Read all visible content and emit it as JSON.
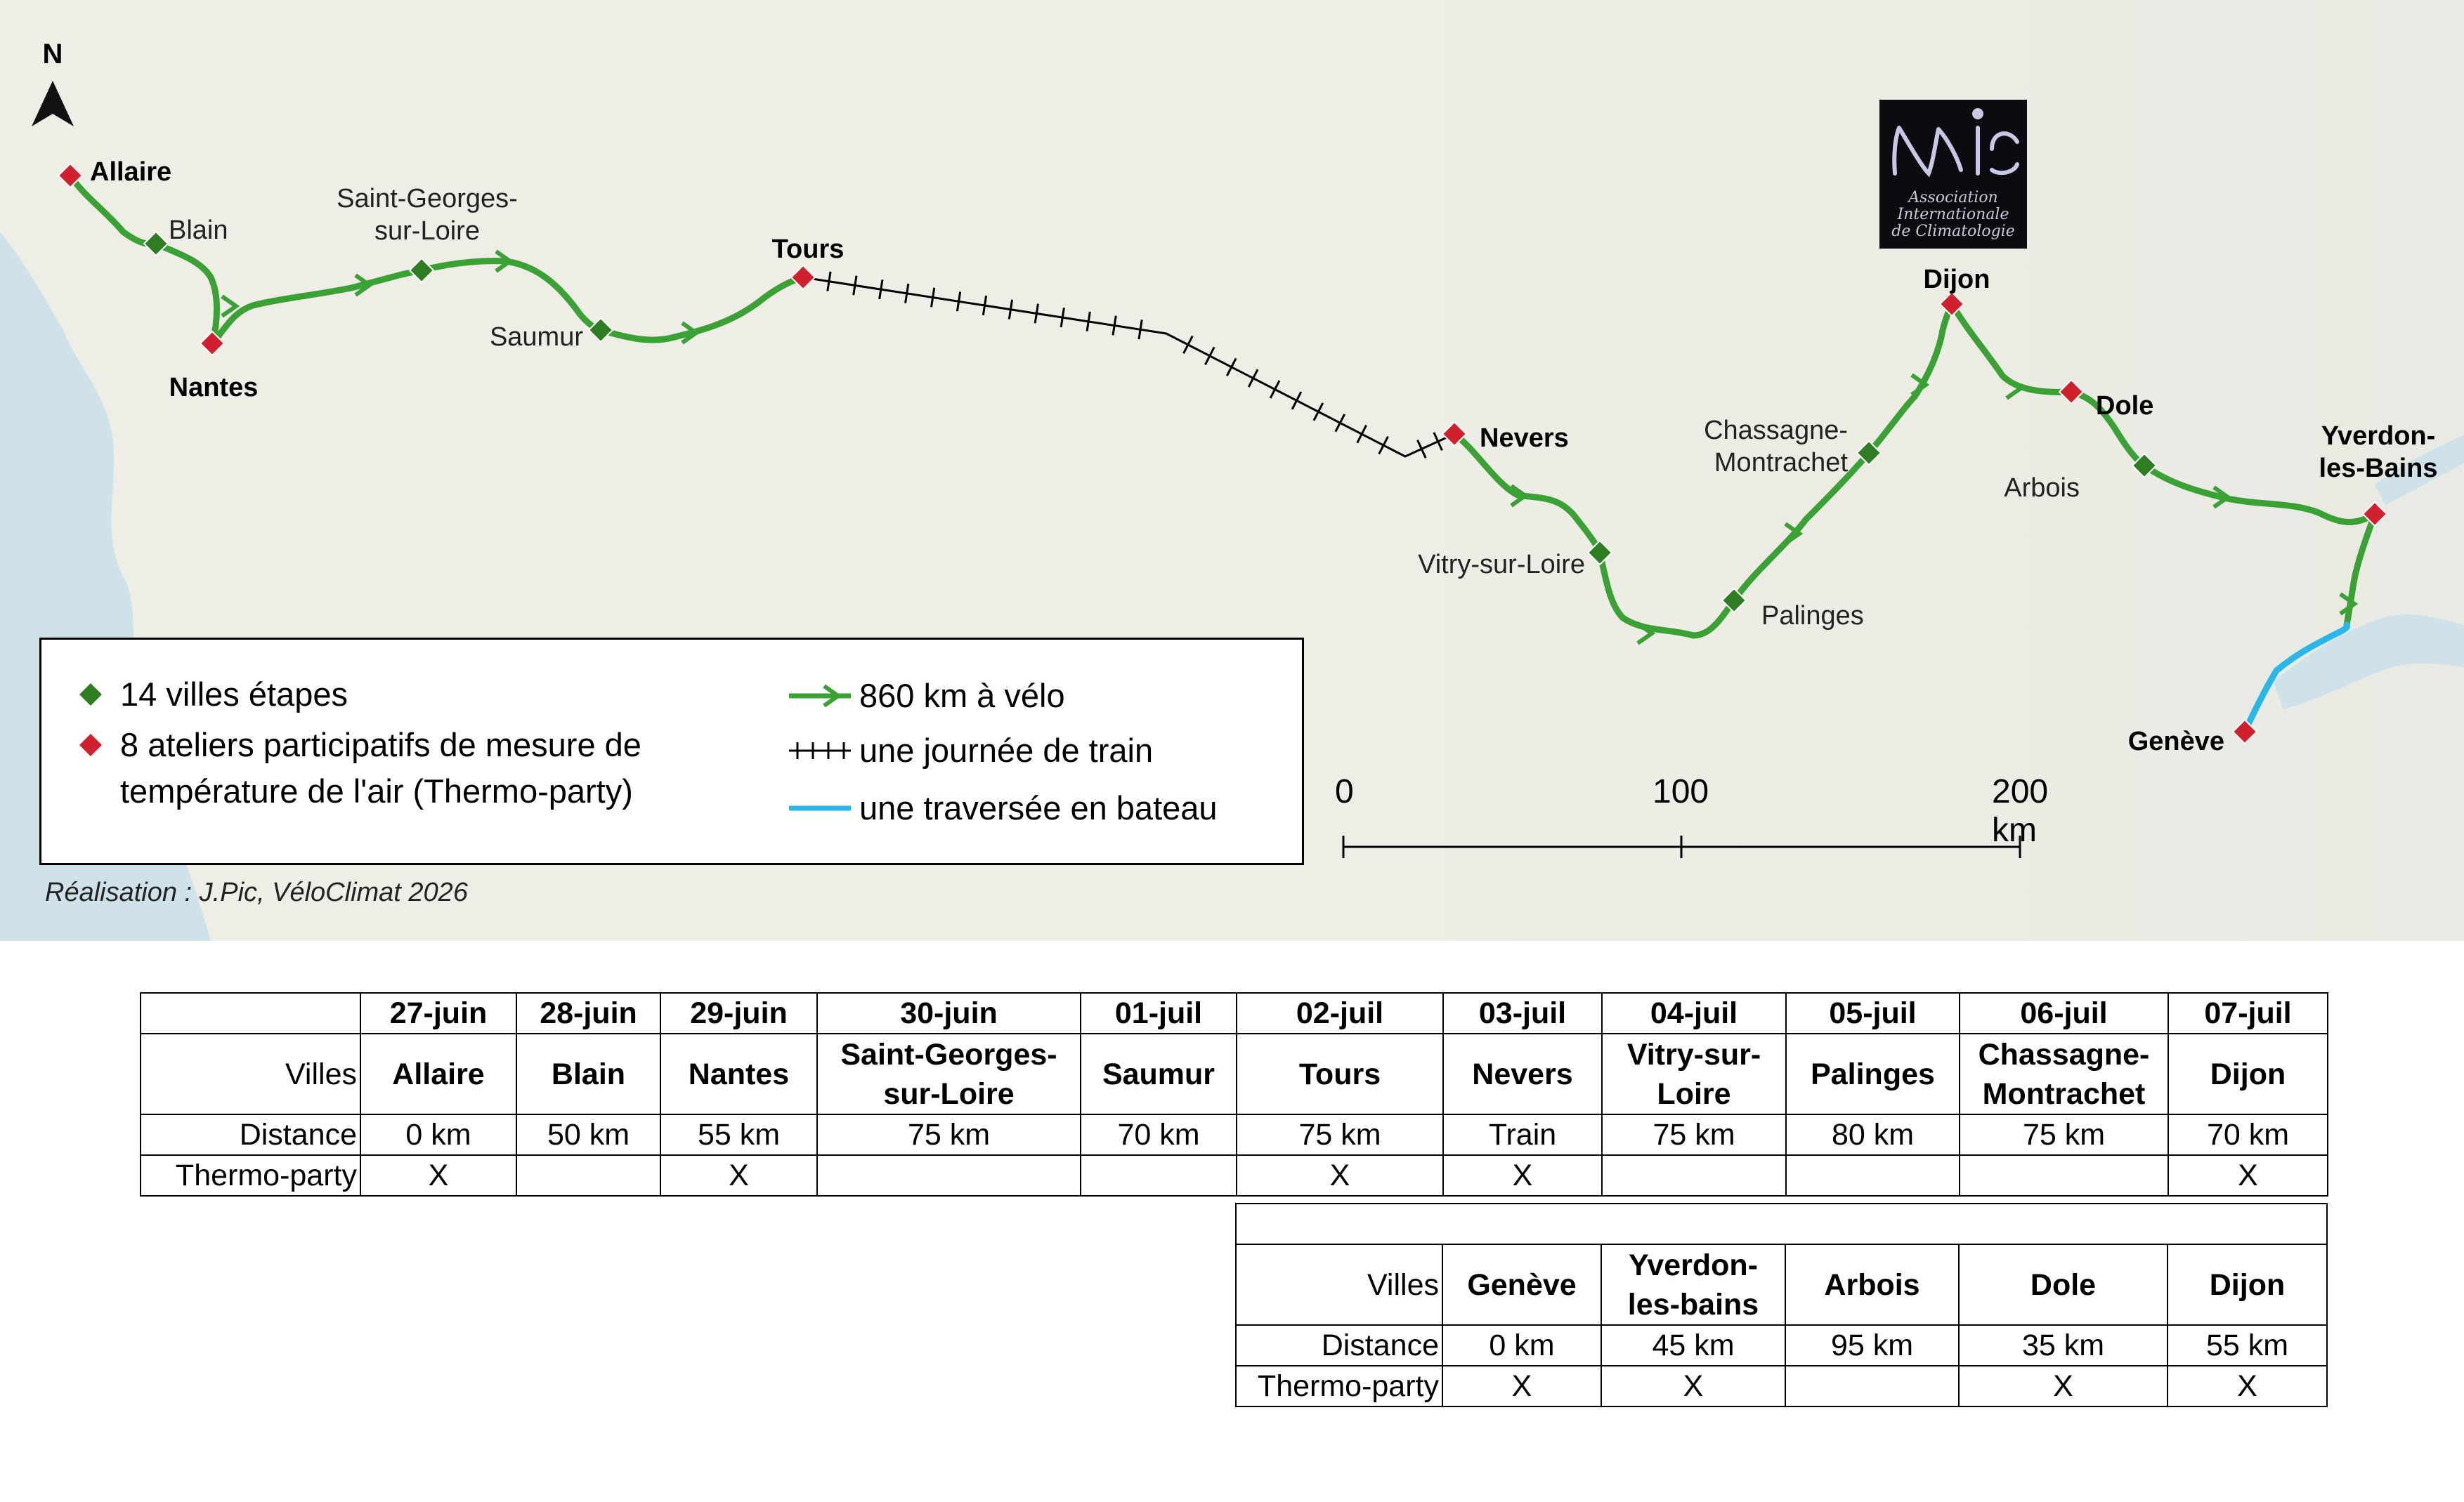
{
  "map": {
    "north_label": "N",
    "cities": [
      {
        "name": "Allaire",
        "type": "atelier",
        "label_bold": true
      },
      {
        "name": "Blain",
        "type": "etape",
        "label_bold": false
      },
      {
        "name": "Nantes",
        "type": "atelier",
        "label_bold": true
      },
      {
        "name": "Saint-Georges-\nsur-Loire",
        "type": "etape",
        "label_bold": false
      },
      {
        "name": "Saumur",
        "type": "etape",
        "label_bold": false
      },
      {
        "name": "Tours",
        "type": "atelier",
        "label_bold": true
      },
      {
        "name": "Nevers",
        "type": "atelier",
        "label_bold": true
      },
      {
        "name": "Vitry-sur-Loire",
        "type": "etape",
        "label_bold": false
      },
      {
        "name": "Palinges",
        "type": "etape",
        "label_bold": false
      },
      {
        "name": "Chassagne-\nMontrachet",
        "type": "etape",
        "label_bold": false
      },
      {
        "name": "Dijon",
        "type": "atelier",
        "label_bold": true
      },
      {
        "name": "Dole",
        "type": "atelier",
        "label_bold": true
      },
      {
        "name": "Arbois",
        "type": "etape",
        "label_bold": false
      },
      {
        "name": "Yverdon-\nles-Bains",
        "type": "atelier",
        "label_bold": true
      },
      {
        "name": "Genève",
        "type": "atelier",
        "label_bold": true
      }
    ],
    "colors": {
      "etape": "#2e7d22",
      "atelier": "#d0202e",
      "bike": "#3aa135",
      "train": "#000000",
      "boat": "#29b6e8"
    }
  },
  "legend": {
    "etapes": "14 villes étapes",
    "ateliers": "8 ateliers participatifs de mesure de\ntempérature de l'air (Thermo-party)",
    "bike": "860 km à vélo",
    "train": "une journée de train",
    "boat": "une traversée en bateau"
  },
  "scale": {
    "labels": [
      "0",
      "100",
      "200 km"
    ]
  },
  "credit": "Réalisation : J.Pic, VéloClimat 2026",
  "logo": {
    "mark": "aic",
    "line1": "Association",
    "line2": "Internationale",
    "line3": "de Climatologie"
  },
  "table1": {
    "row_labels": [
      "Villes",
      "Distance",
      "Thermo-party"
    ],
    "dates": [
      "27-juin",
      "28-juin",
      "29-juin",
      "30-juin",
      "01-juil",
      "02-juil",
      "03-juil",
      "04-juil",
      "05-juil",
      "06-juil",
      "07-juil"
    ],
    "villes": [
      "Allaire",
      "Blain",
      "Nantes",
      "Saint-Georges-\nsur-Loire",
      "Saumur",
      "Tours",
      "Nevers",
      "Vitry-sur-\nLoire",
      "Palinges",
      "Chassagne-\nMontrachet",
      "Dijon"
    ],
    "distances": [
      "0 km",
      "50 km",
      "55 km",
      "75 km",
      "70 km",
      "75 km",
      "Train",
      "75 km",
      "80 km",
      "75 km",
      "70 km"
    ],
    "thermo": [
      "X",
      "",
      "X",
      "",
      "",
      "X",
      "X",
      "",
      "",
      "",
      "X"
    ]
  },
  "table2": {
    "row_labels": [
      "Villes",
      "Distance",
      "Thermo-party"
    ],
    "villes": [
      "Genève",
      "Yverdon-\nles-bains",
      "Arbois",
      "Dole",
      "Dijon"
    ],
    "distances": [
      "0 km",
      "45 km",
      "95 km",
      "35 km",
      "55 km"
    ],
    "thermo": [
      "X",
      "X",
      "",
      "X",
      "X"
    ]
  }
}
